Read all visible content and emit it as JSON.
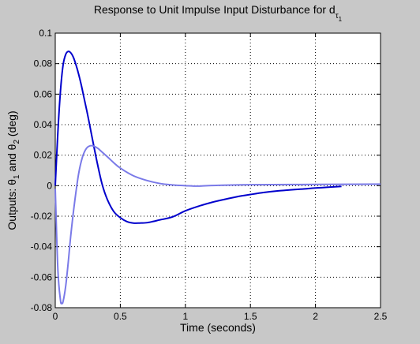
{
  "chart_data": {
    "type": "line",
    "title": "Response to Unit Impulse Input Disturbance for d",
    "title_sub": "τ",
    "title_sub_sub": "1",
    "xlabel": "Time (seconds)",
    "ylabel": {
      "prefix": "Outputs: θ",
      "sub1": "1",
      "middle": " and θ",
      "sub2": "2",
      "suffix": " (deg)"
    },
    "xlim": [
      0,
      2.5
    ],
    "ylim": [
      -0.08,
      0.1
    ],
    "x_ticks": [
      "0",
      "0.5",
      "1",
      "1.5",
      "2",
      "2.5"
    ],
    "y_ticks": [
      "-0.08",
      "-0.06",
      "-0.04",
      "-0.02",
      "0",
      "0.02",
      "0.04",
      "0.06",
      "0.08",
      "0.1"
    ],
    "grid": true,
    "series": [
      {
        "color": "#0000cc",
        "x": [
          0,
          0.02,
          0.04,
          0.06,
          0.08,
          0.1,
          0.12,
          0.14,
          0.16,
          0.18,
          0.2,
          0.22,
          0.25,
          0.28,
          0.32,
          0.36,
          0.4,
          0.45,
          0.5,
          0.55,
          0.6,
          0.65,
          0.7,
          0.75,
          0.8,
          0.9,
          1.0,
          1.1,
          1.2,
          1.3,
          1.4,
          1.5,
          1.6,
          1.7,
          1.8,
          1.9,
          2.0,
          2.1,
          2.2
        ],
        "y": [
          0,
          0.035,
          0.062,
          0.079,
          0.086,
          0.088,
          0.087,
          0.084,
          0.079,
          0.073,
          0.066,
          0.058,
          0.046,
          0.033,
          0.016,
          0.001,
          -0.009,
          -0.017,
          -0.021,
          -0.0235,
          -0.0245,
          -0.0245,
          -0.0243,
          -0.0235,
          -0.0225,
          -0.0205,
          -0.0165,
          -0.0135,
          -0.011,
          -0.009,
          -0.0072,
          -0.0058,
          -0.0045,
          -0.0035,
          -0.0028,
          -0.0022,
          -0.0015,
          -0.001,
          -0.0005
        ]
      },
      {
        "color": "#7a7ae8",
        "x": [
          0,
          0.02,
          0.04,
          0.05,
          0.06,
          0.08,
          0.1,
          0.12,
          0.15,
          0.18,
          0.21,
          0.24,
          0.27,
          0.3,
          0.33,
          0.36,
          0.4,
          0.45,
          0.5,
          0.6,
          0.7,
          0.8,
          0.9,
          1.0,
          1.1,
          1.2,
          1.5,
          2.0,
          2.5
        ],
        "y": [
          -0.002,
          -0.055,
          -0.075,
          -0.077,
          -0.076,
          -0.066,
          -0.05,
          -0.032,
          -0.01,
          0.008,
          0.019,
          0.0245,
          0.0262,
          0.0258,
          0.0243,
          0.022,
          0.019,
          0.015,
          0.0115,
          0.0065,
          0.0035,
          0.0015,
          0.0005,
          0.0,
          -0.0003,
          0.0001,
          0.0006,
          0.0008,
          0.001
        ]
      }
    ]
  }
}
